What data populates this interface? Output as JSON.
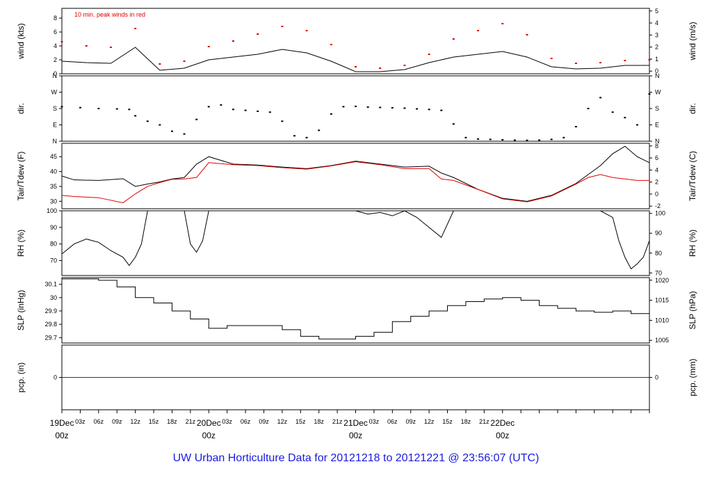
{
  "footer": "UW Urban Horticulture Data for 20121218  to  20121221 @ 23:56:07  (UTC)",
  "colors": {
    "primary_line": "#000000",
    "secondary_line": "#e00000",
    "zero_line": "#2222cc",
    "day_label": "#e00000",
    "footer": "#1a1ae0"
  },
  "x_axis": {
    "hour_ticks": [
      "03z",
      "06z",
      "09z",
      "12z",
      "15z",
      "18z",
      "21z",
      "03z",
      "06z",
      "09z",
      "12z",
      "15z",
      "18z",
      "21z",
      "03z",
      "06z",
      "09z",
      "12z",
      "15z",
      "18z",
      "21z"
    ],
    "day_labels": [
      {
        "date": "19Dec",
        "time": "00z"
      },
      {
        "date": "20Dec",
        "time": "00z"
      },
      {
        "date": "21Dec",
        "time": "00z"
      },
      {
        "date": "22Dec",
        "time": "00z"
      }
    ]
  },
  "chart_data": [
    {
      "type": "line",
      "ylabel_left": "wind (kts)",
      "ylabel_right": "wind (m/s)",
      "annotation": "10 min. peak winds in red",
      "ylim": [
        0,
        9.4
      ],
      "left_ticks": [
        0,
        2,
        4,
        6,
        8
      ],
      "right_ticks": [
        0,
        1,
        2,
        3,
        4,
        5
      ],
      "series": [
        {
          "name": "10 min. peak winds",
          "style": "dots",
          "color": "#e00000",
          "x": [
            0,
            4,
            8,
            12,
            16,
            20,
            24,
            28,
            32,
            36,
            40,
            44,
            48,
            52,
            56,
            60,
            64,
            68,
            72,
            76,
            80,
            84,
            88,
            92,
            96
          ],
          "y": [
            4.6,
            4.0,
            3.8,
            6.5,
            1.4,
            1.8,
            3.9,
            4.7,
            5.7,
            6.8,
            6.2,
            4.2,
            1.0,
            0.8,
            1.2,
            2.8,
            5.0,
            6.2,
            7.2,
            5.6,
            2.2,
            1.5,
            1.6,
            1.9,
            2.0
          ]
        },
        {
          "name": "wind",
          "style": "line",
          "color": "#000000",
          "x": [
            0,
            4,
            8,
            12,
            16,
            20,
            24,
            28,
            32,
            36,
            40,
            44,
            48,
            52,
            56,
            60,
            64,
            68,
            72,
            76,
            80,
            84,
            88,
            92,
            96
          ],
          "y": [
            1.8,
            1.6,
            1.5,
            3.8,
            0.5,
            0.8,
            2.0,
            2.4,
            2.8,
            3.5,
            3.0,
            1.8,
            0.3,
            0.3,
            0.6,
            1.6,
            2.4,
            2.8,
            3.2,
            2.4,
            1.0,
            0.7,
            0.8,
            1.2,
            1.2
          ]
        }
      ]
    },
    {
      "type": "scatter",
      "ylabel_left": "dir.",
      "ylabel_right": "dir.",
      "ylim": [
        0,
        360
      ],
      "left_ticks": [
        "N",
        "E",
        "S",
        "W",
        "N"
      ],
      "right_ticks": [
        "N",
        "E",
        "S",
        "W",
        "N"
      ],
      "series": [
        {
          "name": "direction",
          "style": "dots",
          "color": "#000000",
          "x": [
            0,
            3,
            6,
            9,
            11,
            12,
            14,
            16,
            18,
            20,
            22,
            24,
            26,
            28,
            30,
            32,
            34,
            36,
            38,
            40,
            42,
            44,
            46,
            48,
            50,
            52,
            54,
            56,
            58,
            60,
            62,
            64,
            66,
            68,
            70,
            72,
            74,
            76,
            78,
            80,
            82,
            84,
            86,
            88,
            90,
            92,
            94,
            96
          ],
          "y": [
            190,
            185,
            180,
            178,
            175,
            140,
            110,
            90,
            55,
            40,
            120,
            190,
            200,
            175,
            170,
            165,
            160,
            110,
            30,
            20,
            60,
            150,
            190,
            192,
            188,
            186,
            184,
            182,
            178,
            175,
            170,
            95,
            20,
            12,
            10,
            8,
            6,
            5,
            6,
            10,
            20,
            80,
            180,
            240,
            160,
            130,
            90,
            260
          ]
        }
      ]
    },
    {
      "type": "line",
      "ylabel_left": "Tair/Tdew (F)",
      "ylabel_right": "Tair/Tdew (C)",
      "ylim": [
        27.5,
        49.5
      ],
      "left_ticks": [
        30,
        35,
        40,
        45
      ],
      "right_ticks": [
        -2,
        0,
        2,
        4,
        6,
        8
      ],
      "series": [
        {
          "name": "Tair",
          "style": "line",
          "color": "#000000",
          "x": [
            0,
            2,
            6,
            10,
            12,
            14,
            16,
            18,
            20,
            22,
            24,
            28,
            32,
            36,
            40,
            44,
            48,
            52,
            56,
            60,
            62,
            64,
            68,
            72,
            76,
            80,
            84,
            86,
            88,
            90,
            92,
            94,
            96
          ],
          "y": [
            38.5,
            37.2,
            37.0,
            37.6,
            35.0,
            35.8,
            36.5,
            37.5,
            38.0,
            42.5,
            45.0,
            42.5,
            42.2,
            41.5,
            41.0,
            42.0,
            43.5,
            42.5,
            41.5,
            41.8,
            39.5,
            38.0,
            34.0,
            31.0,
            30.0,
            32.0,
            36.0,
            39.0,
            42.0,
            46.0,
            48.5,
            45.0,
            43.0
          ]
        },
        {
          "name": "Tdew",
          "style": "line",
          "color": "#e00000",
          "x": [
            0,
            2,
            6,
            10,
            12,
            14,
            16,
            18,
            20,
            22,
            24,
            28,
            32,
            36,
            40,
            44,
            48,
            52,
            56,
            60,
            62,
            64,
            68,
            72,
            76,
            80,
            84,
            86,
            88,
            90,
            92,
            94,
            96
          ],
          "y": [
            32.0,
            31.6,
            31.2,
            29.5,
            32.5,
            35.0,
            36.3,
            37.4,
            37.5,
            38.0,
            43.0,
            42.3,
            42.0,
            41.3,
            40.8,
            41.9,
            43.3,
            42.3,
            41.0,
            41.0,
            37.5,
            37.0,
            34.0,
            30.8,
            29.8,
            31.8,
            35.8,
            38.0,
            39.0,
            38.0,
            37.5,
            37.0,
            37.0
          ]
        }
      ]
    },
    {
      "type": "line",
      "ylabel_left": "RH (%)",
      "ylabel_right": "RH (%)",
      "ylim": [
        61,
        100
      ],
      "left_ticks": [
        70,
        80,
        90,
        100
      ],
      "right_ticks": [
        70,
        80,
        90,
        100
      ],
      "series": [
        {
          "name": "RH",
          "style": "line",
          "color": "#000000",
          "x": [
            0,
            2,
            4,
            6,
            8,
            10,
            11,
            12,
            13,
            14,
            16,
            18,
            20,
            21,
            22,
            23,
            24,
            26,
            30,
            36,
            42,
            48,
            50,
            52,
            54,
            56,
            58,
            60,
            62,
            64,
            68,
            72,
            76,
            80,
            84,
            88,
            90,
            91,
            92,
            93,
            94,
            95,
            96
          ],
          "y": [
            74,
            80,
            83,
            81,
            76,
            72,
            67,
            72,
            80,
            100,
            100,
            100,
            100,
            80,
            75,
            82,
            100,
            100,
            100,
            100,
            100,
            100,
            98,
            99,
            97,
            100,
            96,
            90,
            84,
            100,
            100,
            100,
            100,
            100,
            100,
            100,
            96,
            82,
            72,
            65,
            68,
            72,
            82
          ]
        }
      ]
    },
    {
      "type": "line",
      "ylabel_left": "SLP (inHg)",
      "ylabel_right": "SLP (hPa)",
      "ylim": [
        29.66,
        30.15
      ],
      "left_ticks": [
        29.7,
        29.8,
        29.9,
        30.0,
        30.1
      ],
      "right_ticks": [
        1005,
        1010,
        1015,
        1020
      ],
      "series": [
        {
          "name": "SLP",
          "style": "step",
          "color": "#000000",
          "x": [
            0,
            3,
            6,
            9,
            12,
            15,
            18,
            21,
            24,
            27,
            30,
            33,
            36,
            39,
            42,
            45,
            48,
            51,
            54,
            57,
            60,
            63,
            66,
            69,
            72,
            75,
            78,
            81,
            84,
            87,
            90,
            93,
            96
          ],
          "y": [
            30.14,
            30.14,
            30.13,
            30.08,
            30.0,
            29.96,
            29.9,
            29.84,
            29.77,
            29.79,
            29.79,
            29.79,
            29.76,
            29.71,
            29.69,
            29.69,
            29.71,
            29.74,
            29.82,
            29.86,
            29.9,
            29.94,
            29.97,
            29.99,
            30.0,
            29.98,
            29.94,
            29.92,
            29.9,
            29.89,
            29.9,
            29.88,
            29.89
          ]
        }
      ]
    },
    {
      "type": "line",
      "ylabel_left": "pcp. (in)",
      "ylabel_right": "pcp. (mm)",
      "ylim": [
        -1,
        1
      ],
      "left_ticks": [
        0
      ],
      "right_ticks": [
        0
      ],
      "series": [
        {
          "name": "precip",
          "style": "line",
          "color": "#2222cc",
          "x": [
            0,
            96
          ],
          "y": [
            0,
            0
          ]
        }
      ]
    }
  ]
}
